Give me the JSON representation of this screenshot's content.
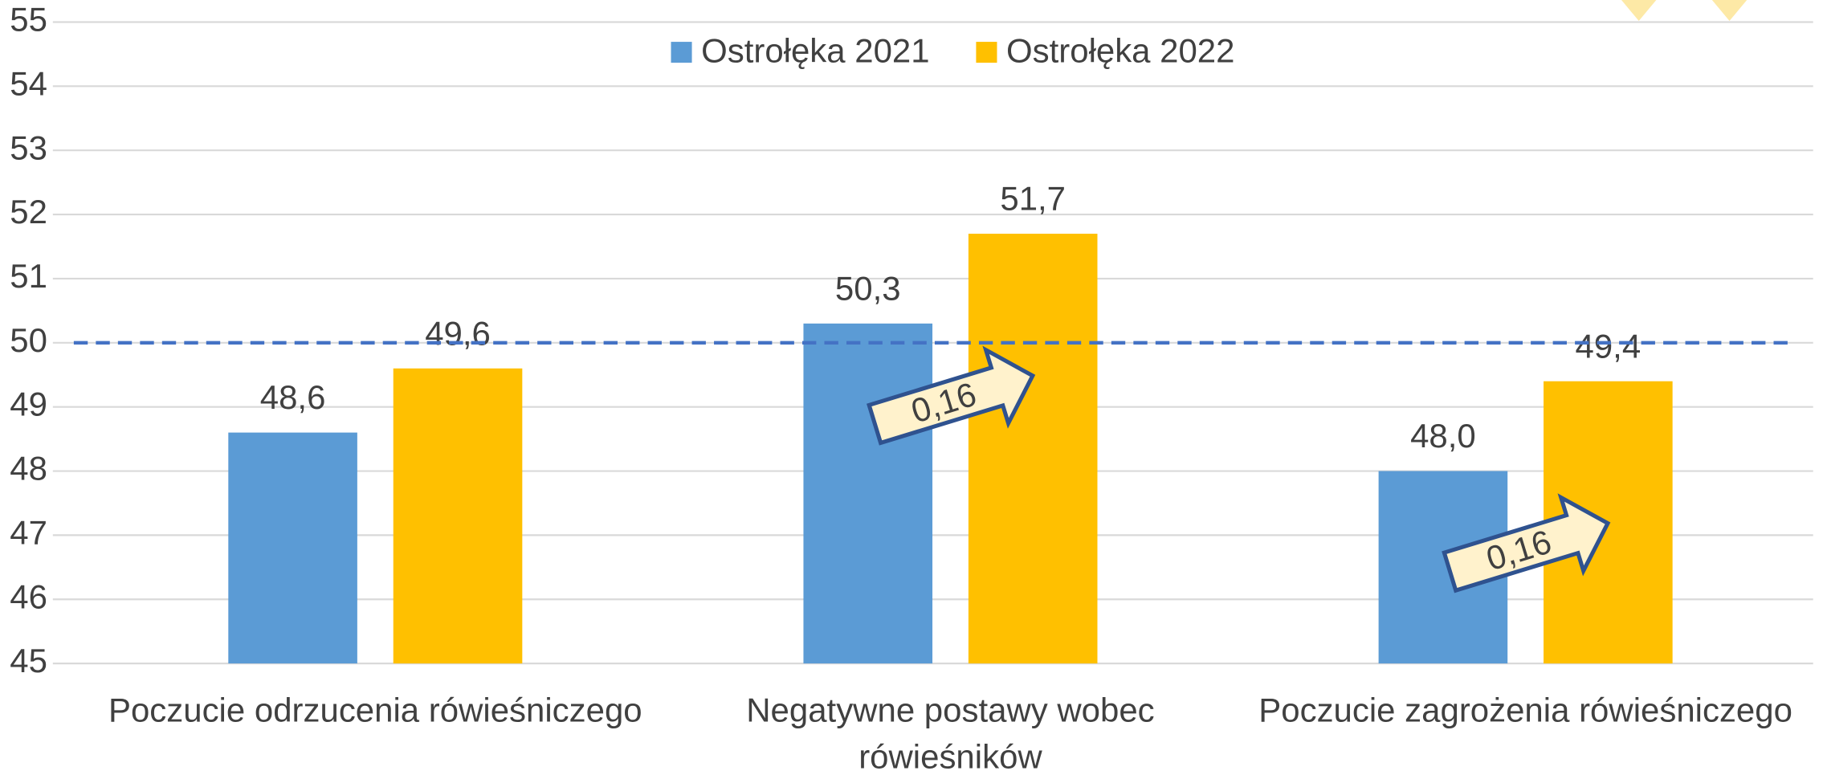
{
  "chart_data": {
    "type": "bar",
    "categories": [
      "Poczucie odrzucenia rówieśniczego",
      "Negatywne postawy wobec rówieśników",
      "Poczucie zagrożenia rówieśniczego"
    ],
    "series": [
      {
        "name": "Ostrołęka 2021",
        "color": "#5b9bd5",
        "values": [
          48.6,
          50.3,
          48.0
        ],
        "value_labels": [
          "48,6",
          "50,3",
          "48,0"
        ]
      },
      {
        "name": "Ostrołęka 2022",
        "color": "#ffc000",
        "values": [
          49.6,
          51.7,
          49.4
        ],
        "value_labels": [
          "49,6",
          "51,7",
          "49,4"
        ]
      }
    ],
    "ylim": [
      45,
      55
    ],
    "yticks": [
      45,
      46,
      47,
      48,
      49,
      50,
      51,
      52,
      53,
      54,
      55
    ],
    "grid": true,
    "reference_line": 50,
    "reference_color": "#4472c4",
    "legend": "top",
    "annotations": [
      {
        "text": "0,16",
        "category": 1
      },
      {
        "text": "0,16",
        "category": 2
      }
    ]
  }
}
